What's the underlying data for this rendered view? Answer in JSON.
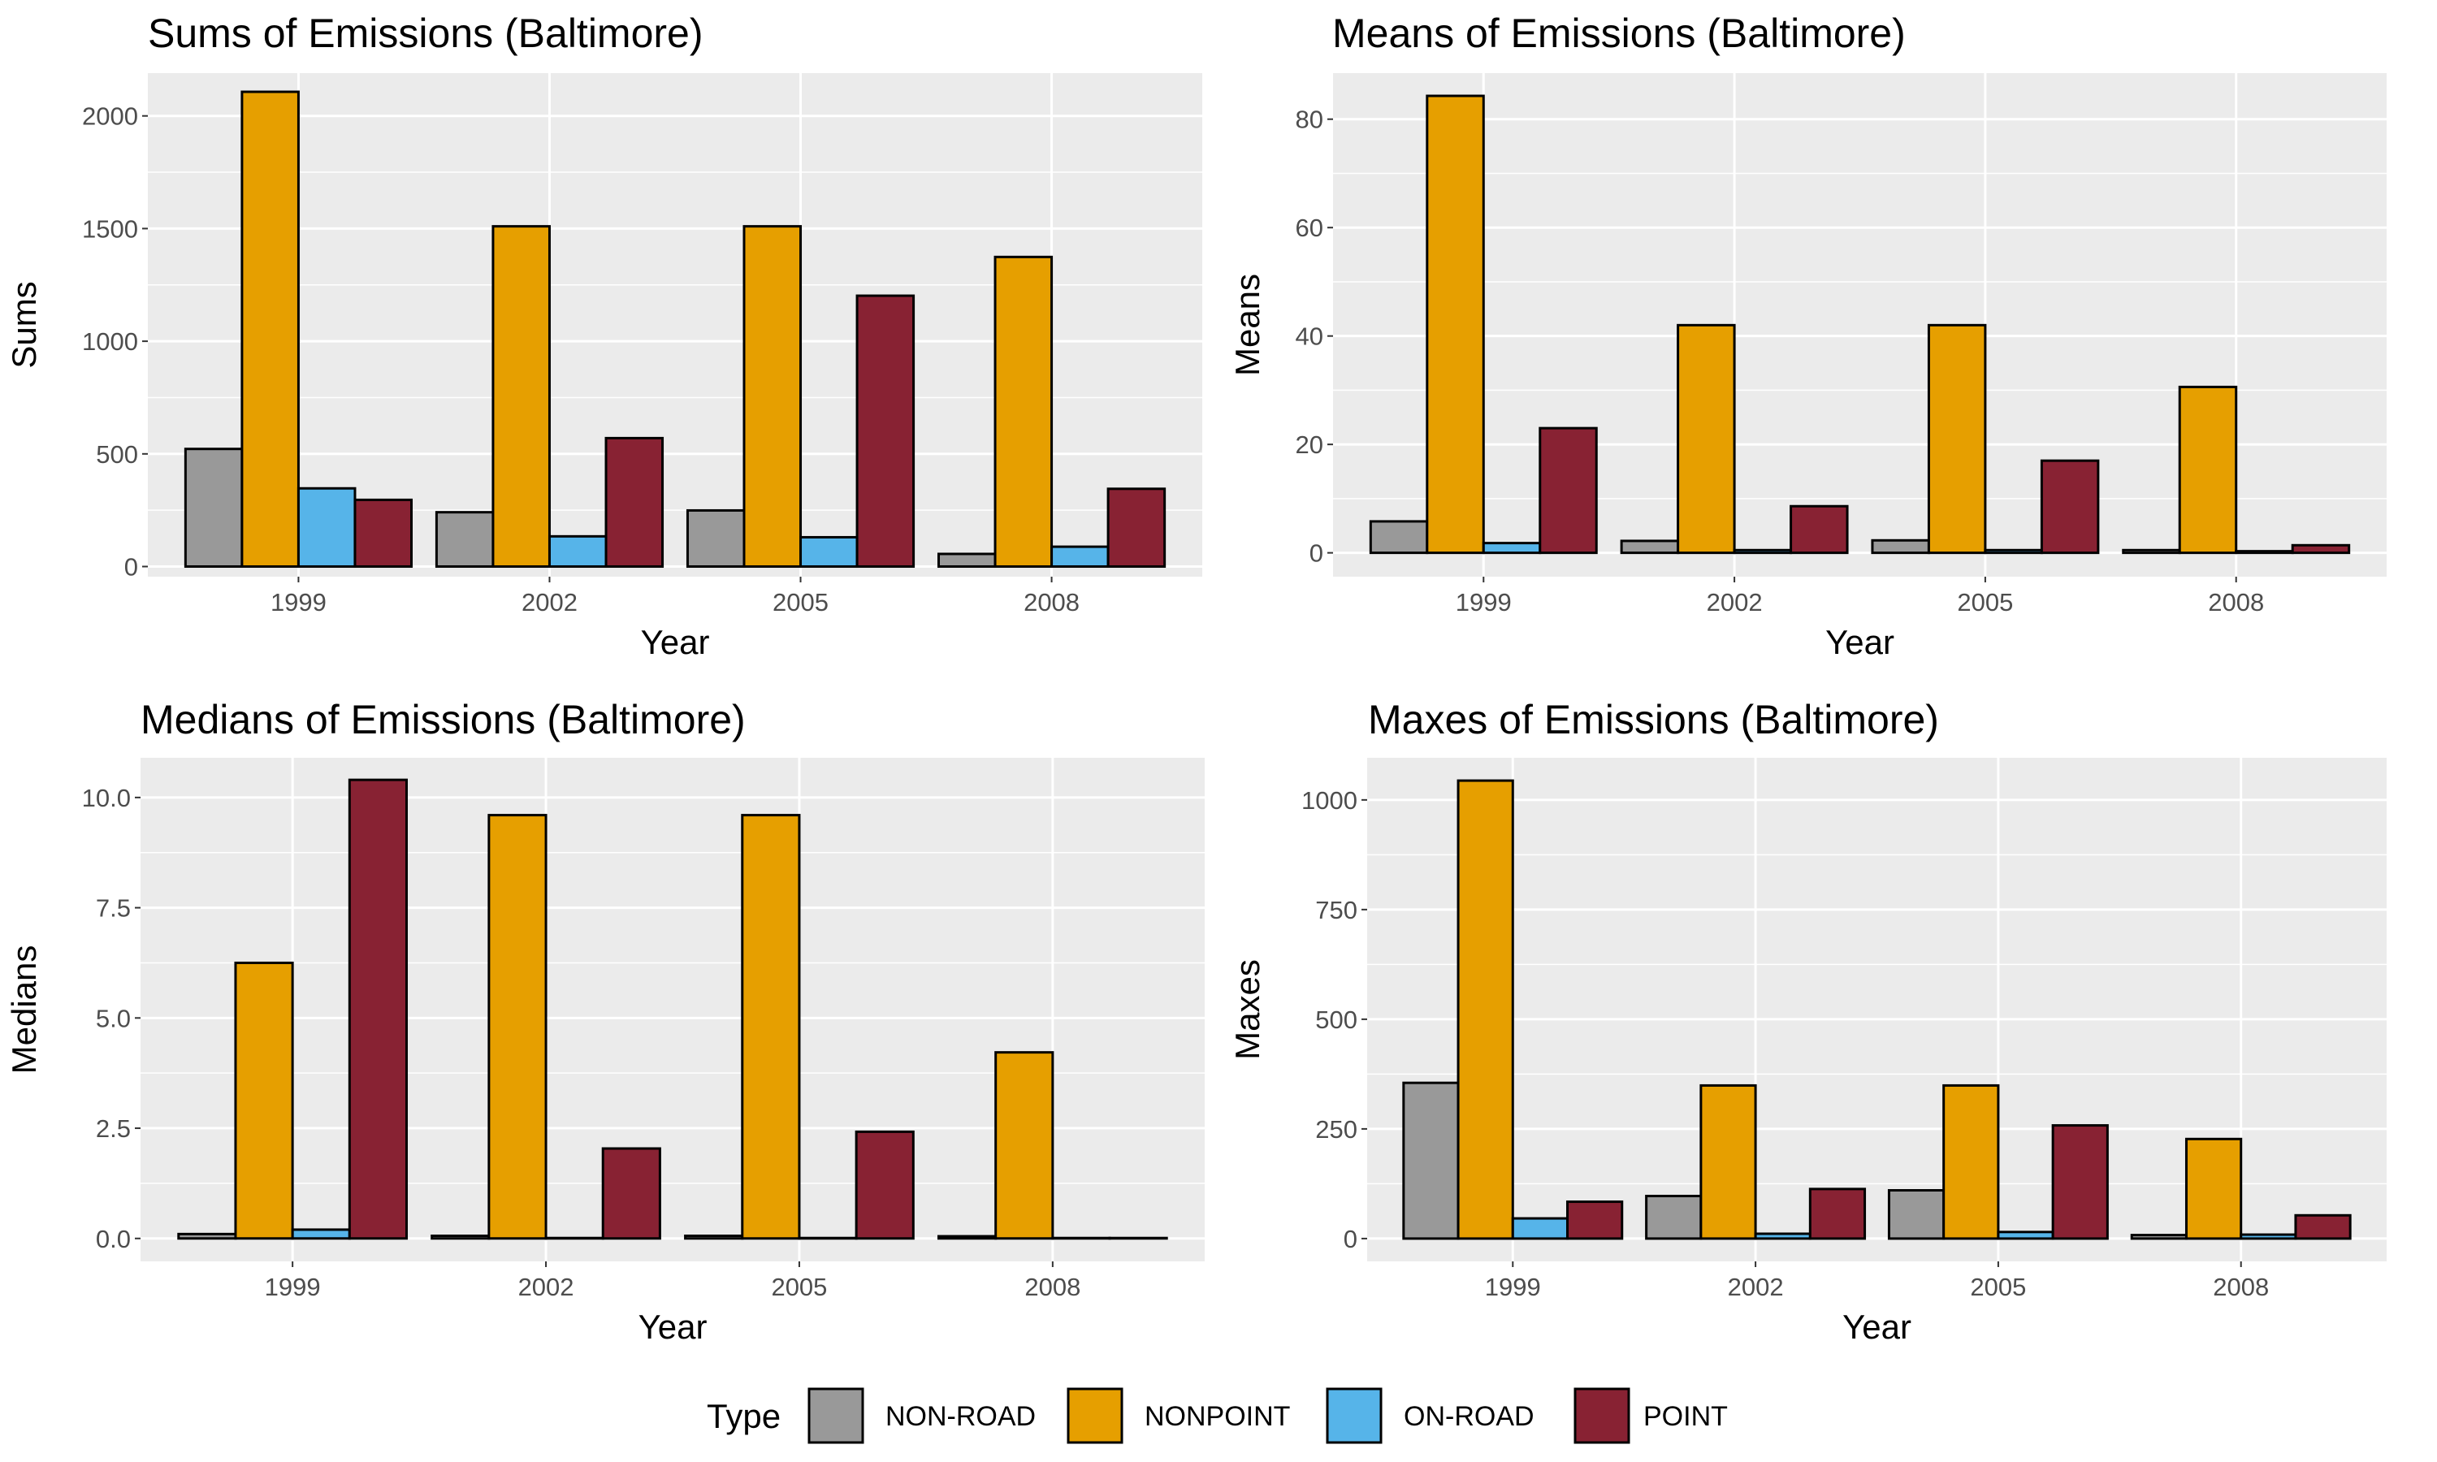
{
  "legend": {
    "title": "Type",
    "items": [
      {
        "name": "NON-ROAD",
        "color": "#999999"
      },
      {
        "name": "NONPOINT",
        "color": "#E69F00"
      },
      {
        "name": "ON-ROAD",
        "color": "#56B4E9"
      },
      {
        "name": "POINT",
        "color": "#882233"
      }
    ]
  },
  "chart_data": [
    {
      "type": "bar",
      "title": "Sums of Emissions (Baltimore)",
      "xlabel": "Year",
      "ylabel": "Sums",
      "categories": [
        "1999",
        "2002",
        "2005",
        "2008"
      ],
      "ylim": [
        -45,
        2190
      ],
      "yticks": [
        0,
        500,
        1000,
        1500,
        2000
      ],
      "ytick_labels": [
        "0",
        "500",
        "1000",
        "1500",
        "2000"
      ],
      "series": [
        {
          "name": "NON-ROAD",
          "values": [
            522,
            241,
            249,
            56
          ]
        },
        {
          "name": "NONPOINT",
          "values": [
            2107,
            1510,
            1510,
            1374
          ]
        },
        {
          "name": "ON-ROAD",
          "values": [
            347,
            134,
            130,
            88
          ]
        },
        {
          "name": "POINT",
          "values": [
            296,
            570,
            1202,
            345
          ]
        }
      ]
    },
    {
      "type": "bar",
      "title": "Means of Emissions (Baltimore)",
      "xlabel": "Year",
      "ylabel": "Means",
      "categories": [
        "1999",
        "2002",
        "2005",
        "2008"
      ],
      "ylim": [
        -4.4,
        88.5
      ],
      "yticks": [
        0,
        20,
        40,
        60,
        80
      ],
      "ytick_labels": [
        "0",
        "20",
        "40",
        "60",
        "80"
      ],
      "series": [
        {
          "name": "NON-ROAD",
          "values": [
            5.8,
            2.2,
            2.3,
            0.5
          ]
        },
        {
          "name": "NONPOINT",
          "values": [
            84.3,
            42.0,
            42.0,
            30.6
          ]
        },
        {
          "name": "ON-ROAD",
          "values": [
            1.8,
            0.5,
            0.5,
            0.3
          ]
        },
        {
          "name": "POINT",
          "values": [
            23.0,
            8.6,
            17.0,
            1.4
          ]
        }
      ]
    },
    {
      "type": "bar",
      "title": "Medians of Emissions (Baltimore)",
      "xlabel": "Year",
      "ylabel": "Medians",
      "categories": [
        "1999",
        "2002",
        "2005",
        "2008"
      ],
      "ylim": [
        -0.52,
        10.9
      ],
      "yticks": [
        0,
        2.5,
        5,
        7.5,
        10
      ],
      "ytick_labels": [
        "0.0",
        "2.5",
        "5.0",
        "7.5",
        "10.0"
      ],
      "series": [
        {
          "name": "NON-ROAD",
          "values": [
            0.1,
            0.06,
            0.06,
            0.05
          ]
        },
        {
          "name": "NONPOINT",
          "values": [
            6.25,
            9.6,
            9.6,
            4.22
          ]
        },
        {
          "name": "ON-ROAD",
          "values": [
            0.2,
            0.01,
            0.01,
            0.01
          ]
        },
        {
          "name": "POINT",
          "values": [
            10.4,
            2.04,
            2.42,
            0.01
          ]
        }
      ]
    },
    {
      "type": "bar",
      "title": "Maxes of Emissions (Baltimore)",
      "xlabel": "Year",
      "ylabel": "Maxes",
      "categories": [
        "1999",
        "2002",
        "2005",
        "2008"
      ],
      "ylim": [
        -52,
        1096
      ],
      "yticks": [
        0,
        250,
        500,
        750,
        1000
      ],
      "ytick_labels": [
        "0",
        "250",
        "500",
        "750",
        "1000"
      ],
      "series": [
        {
          "name": "NON-ROAD",
          "values": [
            355,
            97,
            110,
            8
          ]
        },
        {
          "name": "NONPOINT",
          "values": [
            1044,
            349,
            349,
            227
          ]
        },
        {
          "name": "ON-ROAD",
          "values": [
            46,
            11,
            15,
            9
          ]
        },
        {
          "name": "POINT",
          "values": [
            84,
            113,
            258,
            53
          ]
        }
      ]
    }
  ]
}
